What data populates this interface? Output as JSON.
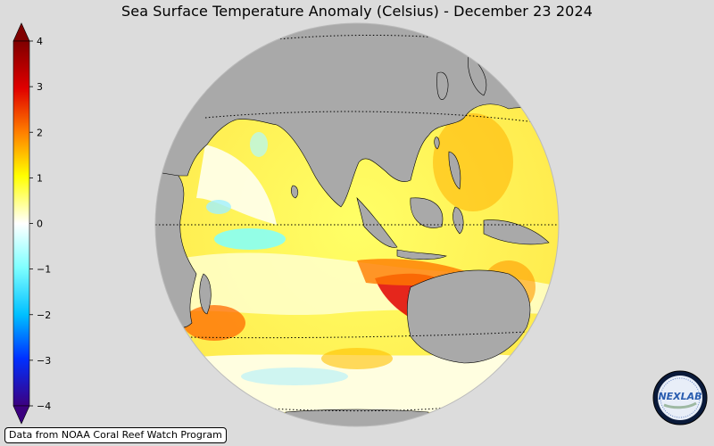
{
  "title": "Sea Surface Temperature Anomaly (Celsius) - December 23 2024",
  "credit": "Data from NOAA Coral Reef Watch Program",
  "logo_text": "NEXLAB",
  "colorbar": {
    "ticks": [
      "4",
      "3",
      "2",
      "1",
      "0",
      "−1",
      "−2",
      "−3",
      "−4"
    ],
    "min": -4,
    "max": 4,
    "colors": {
      "top": "#7f0000",
      "red": "#e80000",
      "orange": "#ff8c00",
      "yellow": "#ffff00",
      "white": "#ffffff",
      "cyan": "#7fffff",
      "blue": "#0064ff",
      "bottom": "#3c007f"
    }
  },
  "map": {
    "projection": "orthographic",
    "center": "Indian Ocean / Maritime Continent",
    "land_color": "#a9a9a9",
    "ocean_base_color": "#ffff80"
  }
}
